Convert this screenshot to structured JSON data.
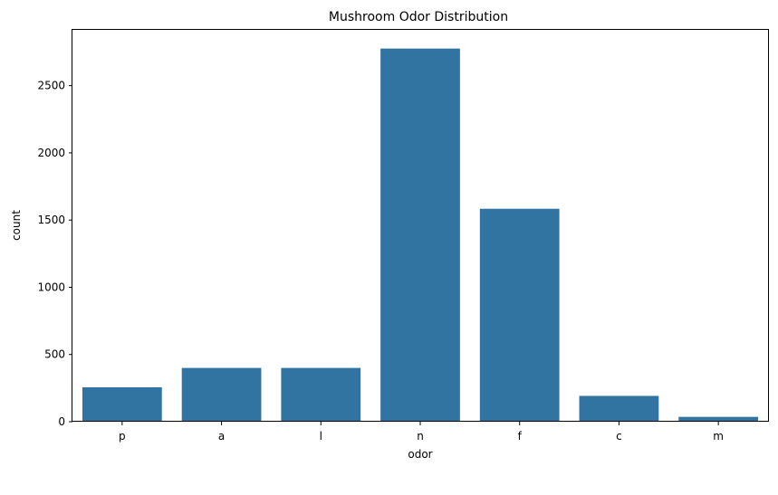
{
  "chart_data": {
    "type": "bar",
    "title": "Mushroom Odor Distribution",
    "xlabel": "odor",
    "ylabel": "count",
    "categories": [
      "p",
      "a",
      "l",
      "n",
      "f",
      "c",
      "m"
    ],
    "values": [
      256,
      400,
      400,
      2776,
      1584,
      192,
      36
    ],
    "ylim": [
      0,
      2915
    ],
    "yticks": [
      0,
      500,
      1000,
      1500,
      2000,
      2500
    ],
    "ytick_labels": [
      "0",
      "500",
      "1000",
      "1500",
      "2000",
      "2500"
    ],
    "bar_color": "#3274a1",
    "grid": false,
    "legend": "none"
  }
}
